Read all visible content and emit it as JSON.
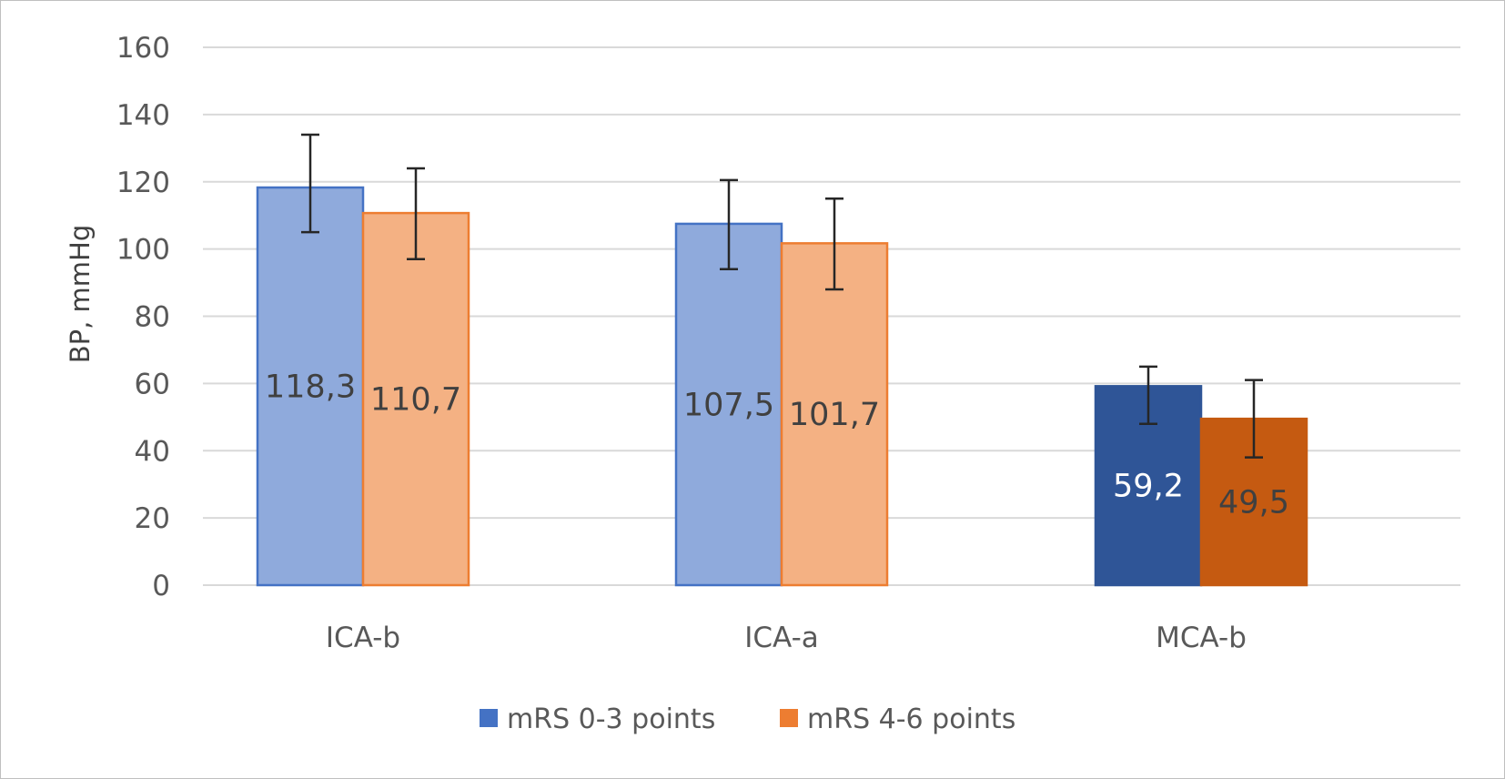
{
  "chart_data": {
    "type": "bar",
    "title": "",
    "xlabel": "",
    "ylabel": "BP, mmHg",
    "ylim": [
      0,
      160
    ],
    "yticks": [
      0,
      20,
      40,
      60,
      80,
      100,
      120,
      140,
      160
    ],
    "grid": true,
    "legend_position": "bottom",
    "categories": [
      "ICA-b",
      "ICA-a",
      "MCA-b"
    ],
    "series": [
      {
        "name": "mRS 0-3 points",
        "legend_color": "#4472c4",
        "values": [
          118.3,
          107.5,
          59.2
        ],
        "labels": [
          "118,3",
          "107,5",
          "59,2"
        ],
        "error_low": [
          105,
          94,
          48
        ],
        "error_high": [
          134,
          120.5,
          65
        ],
        "colors": [
          "#8faadc",
          "#8faadc",
          "#2f5597"
        ],
        "border_colors": [
          "#4472c4",
          "#4472c4",
          "#2f5597"
        ],
        "label_colors": [
          "#404040",
          "#404040",
          "#ffffff"
        ]
      },
      {
        "name": "mRS 4-6 points",
        "legend_color": "#ed7d31",
        "values": [
          110.7,
          101.7,
          49.5
        ],
        "labels": [
          "110,7",
          "101,7",
          "49,5"
        ],
        "error_low": [
          97,
          88,
          38
        ],
        "error_high": [
          124,
          115,
          61
        ],
        "colors": [
          "#f4b183",
          "#f4b183",
          "#c55a11"
        ],
        "border_colors": [
          "#ed7d31",
          "#ed7d31",
          "#c55a11"
        ],
        "label_colors": [
          "#404040",
          "#404040",
          "#404040"
        ]
      }
    ]
  }
}
